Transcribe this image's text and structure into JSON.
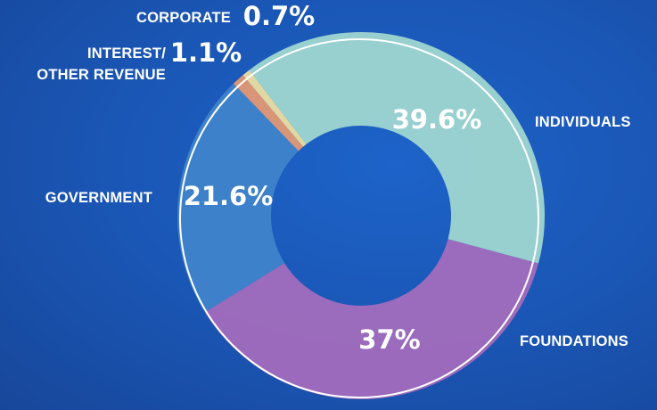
{
  "chart_data": {
    "type": "donut",
    "categories": [
      "INDIVIDUALS",
      "FOUNDATIONS",
      "GOVERNMENT",
      "INTEREST/\nOTHER REVENUE",
      "CORPORATE"
    ],
    "values": [
      39.6,
      37,
      21.6,
      1.1,
      0.7
    ],
    "value_labels": [
      "39.6%",
      "37%",
      "21.6%",
      "1.1%",
      "0.7%"
    ],
    "colors": [
      "#a3d9d0",
      "#a66dbd",
      "#4184cc",
      "#e99a72",
      "#f1e3a2"
    ]
  }
}
